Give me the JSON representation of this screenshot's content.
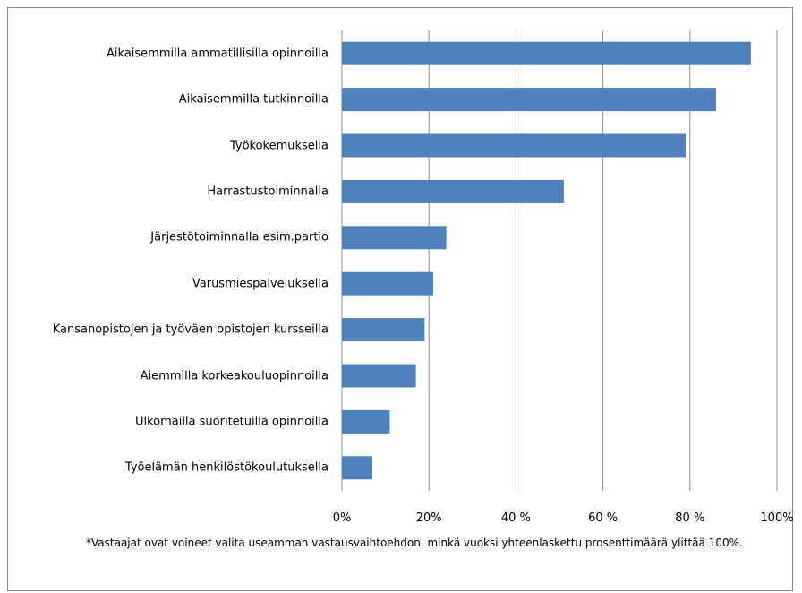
{
  "chart_data": {
    "type": "bar",
    "orientation": "horizontal",
    "categories": [
      "Aikaisemmilla ammatillisilla opinnoilla",
      "Aikaisemmilla tutkinnoilla",
      "Työkokemuksella",
      "Harrastustoiminnalla",
      "Järjestötoiminnalla esim.partio",
      "Varusmiespalveluksella",
      "Kansanopistojen ja työväen opistojen kursseilla",
      "Aiemmilla korkeakouluopinnoilla",
      "Ulkomailla suoritetuilla opinnoilla",
      "Työelämän henkilöstökoulutuksella"
    ],
    "values": [
      94,
      86,
      79,
      51,
      24,
      21,
      19,
      17,
      11,
      7
    ],
    "color": "#4f81bd",
    "xlim": [
      0,
      100
    ],
    "xticks": [
      {
        "value": 0,
        "label": "0%"
      },
      {
        "value": 20,
        "label": "20%"
      },
      {
        "value": 40,
        "label": "40 %"
      },
      {
        "value": 60,
        "label": "60 %"
      },
      {
        "value": 80,
        "label": "80 %"
      },
      {
        "value": 100,
        "label": "100%"
      }
    ],
    "grid": true,
    "footnote": "*Vastaajat ovat voineet valita useamman vastausvaihtoehdon, minkä vuoksi yhteenlaskettu prosenttimäärä ylittää 100%."
  }
}
